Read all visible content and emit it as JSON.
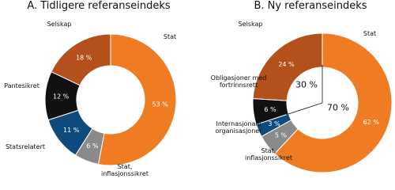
{
  "chart_data": [
    {
      "type": "pie",
      "title": "A. Tidligere referanseindeks",
      "categories": [
        "Stat",
        "Stat, inflasjonssikret",
        "Statsrelatert",
        "Pantesikret",
        "Selskap"
      ],
      "values": [
        53,
        6,
        11,
        12,
        18
      ],
      "value_labels": [
        "53 %",
        "6 %",
        "11 %",
        "12 %",
        "18 %"
      ],
      "colors": [
        "#ef7b23",
        "#8a8a8a",
        "#0e4a7b",
        "#111111",
        "#b4501c"
      ]
    },
    {
      "type": "pie",
      "title": "B. Ny referanseindeks",
      "categories": [
        "Stat",
        "Stat, inflasjonssikret",
        "Internasjonale organisasjoner",
        "Obligasjoner med fortrinnsrett",
        "Selskap"
      ],
      "values": [
        62,
        5,
        3,
        6,
        24
      ],
      "value_labels": [
        "62 %",
        "5 %",
        "3 %",
        "6 %",
        "24 %"
      ],
      "colors": [
        "#ef7b23",
        "#8a8a8a",
        "#0e4a7b",
        "#111111",
        "#b4501c"
      ],
      "split": [
        {
          "value": 30,
          "label": "30 %"
        },
        {
          "value": 70,
          "label": "70 %"
        }
      ]
    }
  ]
}
